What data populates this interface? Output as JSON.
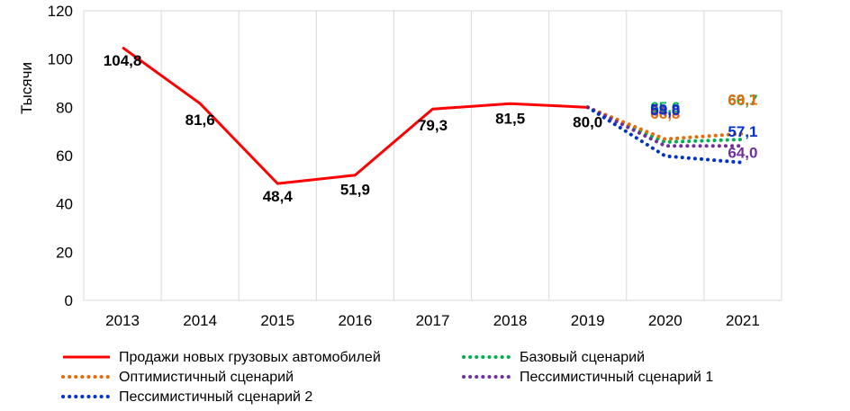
{
  "chart_data": {
    "type": "line",
    "title": "",
    "ylabel": "Тысячи",
    "xlabel": "",
    "ylim": [
      0,
      120
    ],
    "yticks": [
      0,
      20,
      40,
      60,
      80,
      100,
      120
    ],
    "categories": [
      "2013",
      "2014",
      "2015",
      "2016",
      "2017",
      "2018",
      "2019",
      "2020",
      "2021"
    ],
    "grid": "vertical",
    "legend_position": "bottom",
    "series": [
      {
        "name": "Продажи новых грузовых автомобилей",
        "color": "#ff0000",
        "style": "solid",
        "values": [
          104.8,
          81.6,
          48.4,
          51.9,
          79.3,
          81.5,
          80.0,
          null,
          null
        ],
        "labels": [
          "104,8",
          "81,6",
          "48,4",
          "51,9",
          "79,3",
          "81,5",
          "80,0",
          "",
          ""
        ]
      },
      {
        "name": "Базовый сценарий",
        "color": "#00b050",
        "style": "dotted",
        "values": [
          null,
          null,
          null,
          null,
          null,
          null,
          80.0,
          65.6,
          66.7
        ],
        "labels": [
          "",
          "",
          "",
          "",
          "",
          "",
          "",
          "65,6",
          "66,7"
        ]
      },
      {
        "name": "Оптимистичный  сценарий",
        "color": "#e46c0a",
        "style": "dotted",
        "values": [
          null,
          null,
          null,
          null,
          null,
          null,
          80.0,
          66.8,
          69.1
        ],
        "labels": [
          "",
          "",
          "",
          "",
          "",
          "",
          "",
          "66,8",
          "69,1"
        ]
      },
      {
        "name": "Пессимистичный сценарий 1",
        "color": "#7030a0",
        "style": "dotted",
        "values": [
          null,
          null,
          null,
          null,
          null,
          null,
          80.0,
          64.0,
          64.0
        ],
        "labels": [
          "",
          "",
          "",
          "",
          "",
          "",
          "",
          "64,0",
          "64,0"
        ]
      },
      {
        "name": "Пессимистичный сценарий 2",
        "color": "#0033cc",
        "style": "dotted",
        "values": [
          null,
          null,
          null,
          null,
          null,
          null,
          80.0,
          59.8,
          57.1
        ],
        "labels": [
          "",
          "",
          "",
          "",
          "",
          "",
          "",
          "59,8",
          "57,1"
        ]
      }
    ]
  }
}
